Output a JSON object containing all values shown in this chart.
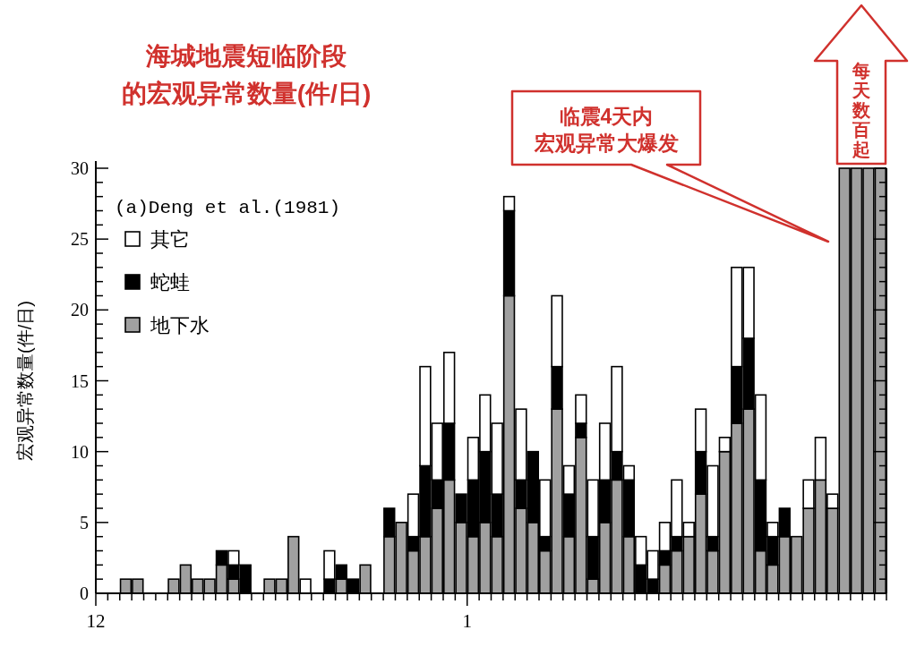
{
  "chart_data": {
    "type": "bar",
    "stacked": true,
    "title": "海城地震短临阶段的宏观异常数量(件/日)",
    "ylabel": "宏观异常数量(件/日)",
    "annotations": [
      "(a)Deng et al.(1981)",
      "临震4天内宏观异常大爆发",
      "每天数百起"
    ],
    "categories": [
      "12",
      null,
      null,
      null,
      null,
      null,
      null,
      null,
      null,
      null,
      null,
      null,
      null,
      null,
      null,
      null,
      null,
      null,
      null,
      null,
      null,
      null,
      null,
      null,
      null,
      null,
      null,
      null,
      null,
      null,
      null,
      "1",
      null,
      null,
      null,
      null,
      null,
      null,
      null,
      null,
      null,
      null,
      null,
      null,
      null,
      null,
      null,
      null,
      null,
      null,
      null,
      null,
      null,
      null,
      null,
      null,
      null,
      null,
      null,
      null,
      null,
      null,
      null,
      null,
      null,
      null
    ],
    "series": [
      {
        "name": "地下水",
        "color": "#a0a0a0",
        "values": [
          0,
          0,
          1,
          1,
          0,
          0,
          1,
          2,
          1,
          1,
          2,
          1,
          0,
          0,
          1,
          1,
          4,
          0,
          0,
          0,
          1,
          0,
          2,
          0,
          4,
          5,
          3,
          4,
          6,
          8,
          5,
          4,
          5,
          4,
          21,
          6,
          5,
          3,
          13,
          4,
          11,
          1,
          5,
          8,
          4,
          0,
          0,
          2,
          3,
          4,
          7,
          3,
          10,
          12,
          13,
          3,
          2,
          4,
          4,
          6,
          8,
          6,
          30,
          30,
          30,
          30
        ]
      },
      {
        "name": "蛇蛙",
        "color": "#000000",
        "values": [
          0,
          0,
          0,
          0,
          0,
          0,
          0,
          0,
          0,
          0,
          1,
          1,
          2,
          0,
          0,
          0,
          0,
          0,
          0,
          1,
          1,
          1,
          0,
          0,
          2,
          0,
          1,
          5,
          2,
          4,
          2,
          4,
          5,
          3,
          6,
          2,
          5,
          1,
          3,
          3,
          1,
          3,
          3,
          2,
          4,
          2,
          1,
          1,
          1,
          0,
          3,
          1,
          0,
          4,
          5,
          5,
          2,
          2,
          0,
          0,
          0,
          0,
          0,
          0,
          0,
          0
        ]
      },
      {
        "name": "其它",
        "color": "#ffffff",
        "values": [
          0,
          0,
          0,
          0,
          0,
          0,
          0,
          0,
          0,
          0,
          0,
          1,
          0,
          0,
          0,
          0,
          0,
          1,
          0,
          2,
          0,
          0,
          0,
          0,
          0,
          0,
          3,
          7,
          4,
          5,
          0,
          3,
          4,
          5,
          1,
          5,
          0,
          4,
          5,
          2,
          2,
          4,
          4,
          6,
          1,
          2,
          2,
          2,
          4,
          1,
          3,
          5,
          1,
          7,
          5,
          6,
          1,
          0,
          0,
          2,
          3,
          1,
          0,
          0,
          0,
          0
        ]
      }
    ],
    "ylim": [
      0,
      30
    ],
    "yticks": [
      0,
      5,
      10,
      15,
      20,
      25,
      30
    ],
    "legend": "top left"
  }
}
